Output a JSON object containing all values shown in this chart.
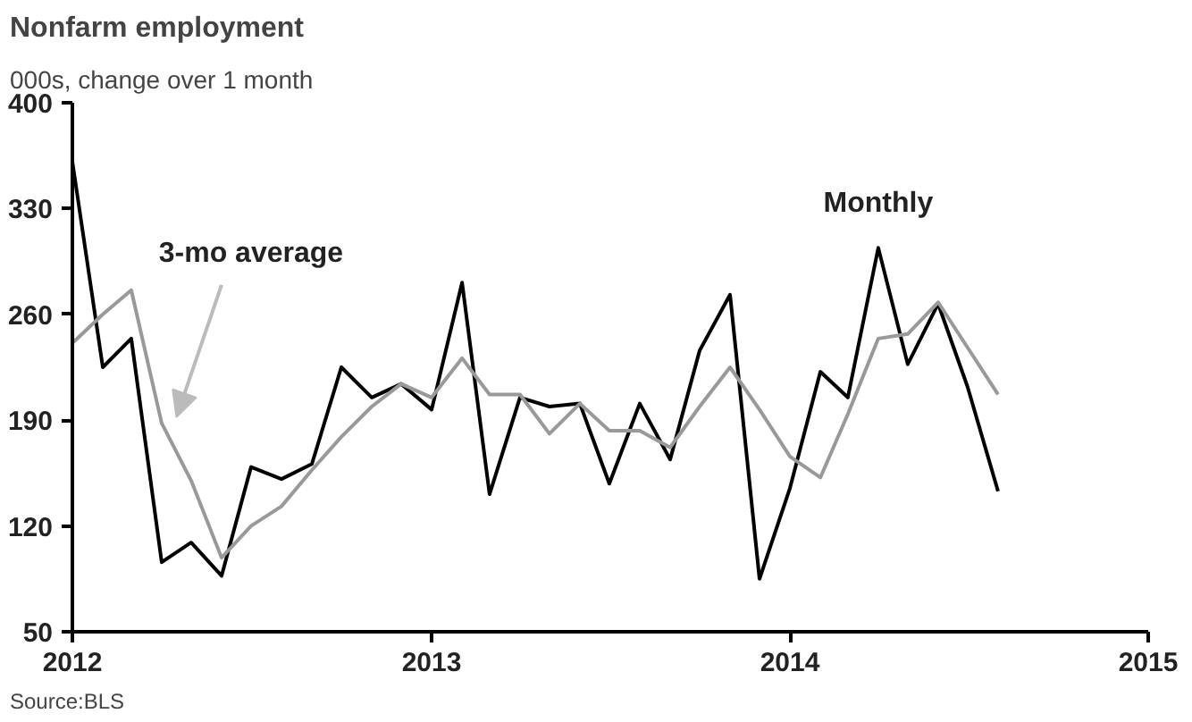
{
  "chart_data": {
    "type": "line",
    "title": "Nonfarm employment",
    "subtitle": "000s, change over 1 month",
    "x": [
      "2012-01",
      "2012-02",
      "2012-03",
      "2012-04",
      "2012-05",
      "2012-06",
      "2012-07",
      "2012-08",
      "2012-09",
      "2012-10",
      "2012-11",
      "2012-12",
      "2013-01",
      "2013-02",
      "2013-03",
      "2013-04",
      "2013-05",
      "2013-06",
      "2013-07",
      "2013-08",
      "2013-09",
      "2013-10",
      "2013-11",
      "2013-12",
      "2014-01",
      "2014-02",
      "2014-03",
      "2014-04",
      "2014-05",
      "2014-06",
      "2014-07",
      "2014-08"
    ],
    "series": [
      {
        "name": "Monthly",
        "color": "#000000",
        "values": [
          361,
          225,
          244,
          96,
          109,
          87,
          159,
          151,
          161,
          225,
          205,
          214,
          197,
          281,
          141,
          205,
          199,
          201,
          148,
          201,
          164,
          236,
          273,
          85,
          145,
          222,
          205,
          304,
          227,
          267,
          212,
          143
        ]
      },
      {
        "name": "3-mo average",
        "color": "#999999",
        "values": [
          241,
          260,
          276,
          188,
          150,
          99,
          120,
          133,
          157,
          179,
          199,
          214,
          205,
          231,
          207,
          207,
          181,
          201,
          183,
          183,
          172,
          199,
          225,
          197,
          166,
          152,
          194,
          244,
          247,
          268,
          238,
          207
        ]
      }
    ],
    "xlim": [
      "2012-01-01",
      "2015-01-01"
    ],
    "xticks": [
      {
        "value": "2012-01-01",
        "label": "2012"
      },
      {
        "value": "2013-01-01",
        "label": "2013"
      },
      {
        "value": "2014-01-01",
        "label": "2014"
      },
      {
        "value": "2015-01-01",
        "label": "2015"
      }
    ],
    "ylim": [
      50,
      400
    ],
    "yticks": [
      50,
      120,
      190,
      260,
      330,
      400
    ],
    "annotations": [
      "Source:BLS"
    ],
    "grid": false
  }
}
